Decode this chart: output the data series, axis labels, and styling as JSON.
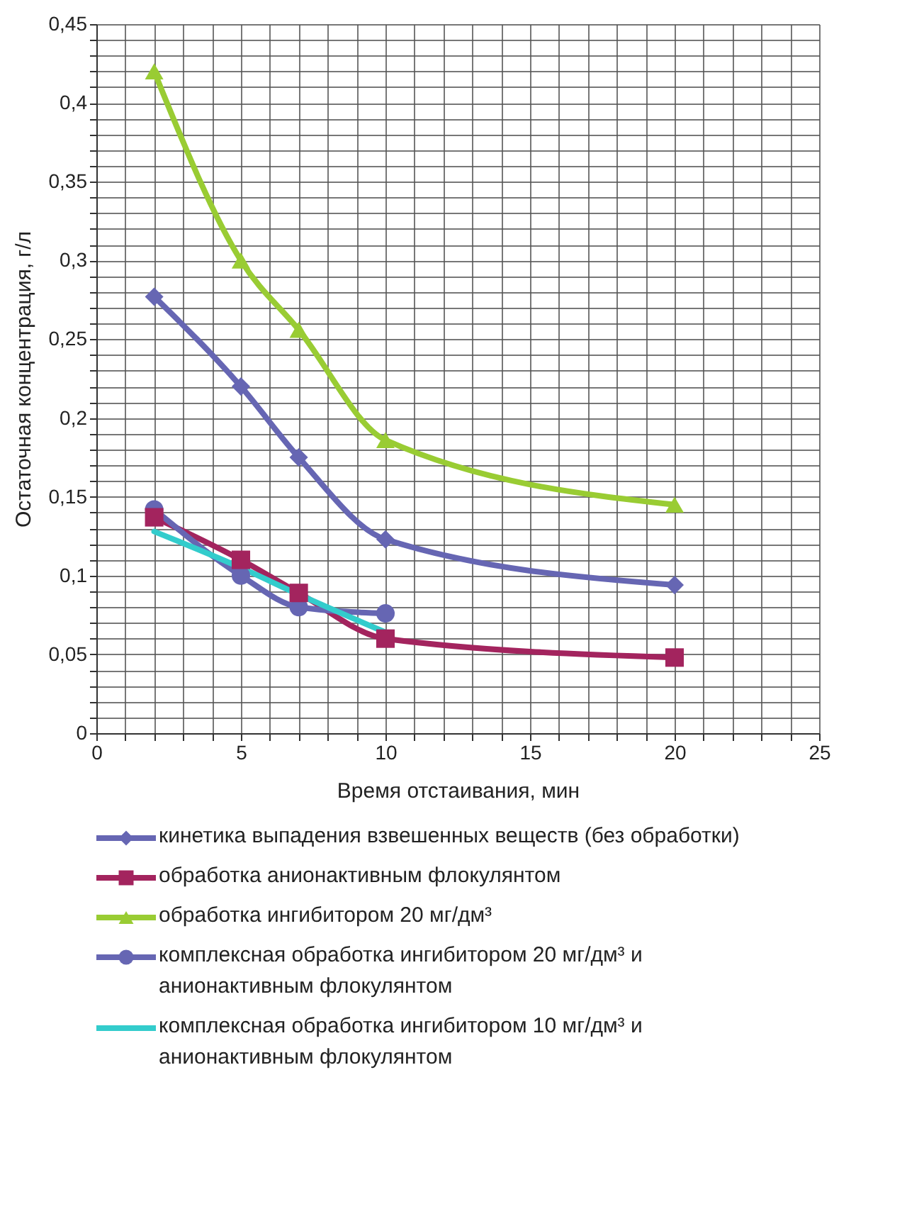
{
  "chart_data": {
    "type": "line",
    "xlabel": "Время отстаивания, мин",
    "ylabel": "Остаточная концентрация, г/л",
    "xlim": [
      0,
      25
    ],
    "xticks": [
      0,
      {
        "value": 1,
        "label": null
      },
      {
        "value": 2,
        "label": null
      },
      {
        "value": 3,
        "label": null
      },
      {
        "value": 4,
        "label": null
      },
      5,
      {
        "value": 6,
        "label": null
      },
      {
        "value": 7,
        "label": null
      },
      {
        "value": 8,
        "label": null
      },
      {
        "value": 9,
        "label": null
      },
      10,
      {
        "value": 11,
        "label": null
      },
      {
        "value": 12,
        "label": null
      },
      {
        "value": 13,
        "label": null
      },
      {
        "value": 14,
        "label": null
      },
      15,
      {
        "value": 16,
        "label": null
      },
      {
        "value": 17,
        "label": null
      },
      {
        "value": 18,
        "label": null
      },
      {
        "value": 19,
        "label": null
      },
      20,
      {
        "value": 21,
        "label": null
      },
      {
        "value": 22,
        "label": null
      },
      {
        "value": 23,
        "label": null
      },
      {
        "value": 24,
        "label": null
      },
      25
    ],
    "ylim": [
      0,
      0.45
    ],
    "yticks": [
      0,
      {
        "value": 0.01,
        "label": null
      },
      {
        "value": 0.02,
        "label": null
      },
      {
        "value": 0.03,
        "label": null
      },
      {
        "value": 0.04,
        "label": null
      },
      {
        "value": 0.05,
        "label": "0,05"
      },
      {
        "value": 0.06,
        "label": null
      },
      {
        "value": 0.07,
        "label": null
      },
      {
        "value": 0.08,
        "label": null
      },
      {
        "value": 0.09,
        "label": null
      },
      {
        "value": 0.1,
        "label": "0,1"
      },
      {
        "value": 0.11,
        "label": null
      },
      {
        "value": 0.12,
        "label": null
      },
      {
        "value": 0.13,
        "label": null
      },
      {
        "value": 0.14,
        "label": null
      },
      {
        "value": 0.15,
        "label": "0,15"
      },
      {
        "value": 0.16,
        "label": null
      },
      {
        "value": 0.17,
        "label": null
      },
      {
        "value": 0.18,
        "label": null
      },
      {
        "value": 0.19,
        "label": null
      },
      {
        "value": 0.2,
        "label": "0,2"
      },
      {
        "value": 0.21,
        "label": null
      },
      {
        "value": 0.22,
        "label": null
      },
      {
        "value": 0.23,
        "label": null
      },
      {
        "value": 0.24,
        "label": null
      },
      {
        "value": 0.25,
        "label": "0,25"
      },
      {
        "value": 0.26,
        "label": null
      },
      {
        "value": 0.27,
        "label": null
      },
      {
        "value": 0.28,
        "label": null
      },
      {
        "value": 0.29,
        "label": null
      },
      {
        "value": 0.3,
        "label": "0,3"
      },
      {
        "value": 0.31,
        "label": null
      },
      {
        "value": 0.32,
        "label": null
      },
      {
        "value": 0.33,
        "label": null
      },
      {
        "value": 0.34,
        "label": null
      },
      {
        "value": 0.35,
        "label": "0,35"
      },
      {
        "value": 0.36,
        "label": null
      },
      {
        "value": 0.37,
        "label": null
      },
      {
        "value": 0.38,
        "label": null
      },
      {
        "value": 0.39,
        "label": null
      },
      {
        "value": 0.4,
        "label": "0,4"
      },
      {
        "value": 0.41,
        "label": null
      },
      {
        "value": 0.42,
        "label": null
      },
      {
        "value": 0.43,
        "label": null
      },
      {
        "value": 0.44,
        "label": null
      },
      {
        "value": 0.45,
        "label": "0,45"
      }
    ],
    "grid": true,
    "legend": "bottom",
    "line_style": "solid",
    "series": [
      {
        "name": "кинетика выпадения взвешенных веществ (без обработки)",
        "color": "#6666b3",
        "marker": "diamond",
        "x": [
          2,
          5,
          7,
          10,
          20
        ],
        "values": [
          0.277,
          0.22,
          0.175,
          0.123,
          0.094
        ]
      },
      {
        "name": "обработка анионактивным флокулянтом",
        "color": "#a3245e",
        "marker": "square",
        "x": [
          2,
          5,
          7,
          10,
          20
        ],
        "values": [
          0.137,
          0.11,
          0.089,
          0.06,
          0.048
        ]
      },
      {
        "name": "обработка ингибитором 20 мг/дм³",
        "color": "#99cc33",
        "marker": "triangle",
        "x": [
          2,
          5,
          7,
          10,
          20
        ],
        "values": [
          0.42,
          0.3,
          0.256,
          0.186,
          0.145
        ]
      },
      {
        "name": "комплексная обработка ингибитором 20 мг/дм³ и анионактивным флокулянтом",
        "color": "#6666b3",
        "marker": "circle",
        "x": [
          2,
          5,
          7,
          10
        ],
        "values": [
          0.142,
          0.1,
          0.08,
          0.076
        ]
      },
      {
        "name": "комплексная обработка ингибитором 10 мг/дм³ и анионактивным флокулянтом",
        "color": "#33cccc",
        "marker": "none",
        "x": [
          2,
          5,
          7,
          10
        ],
        "values": [
          0.128,
          0.105,
          0.088,
          0.064
        ]
      }
    ]
  }
}
